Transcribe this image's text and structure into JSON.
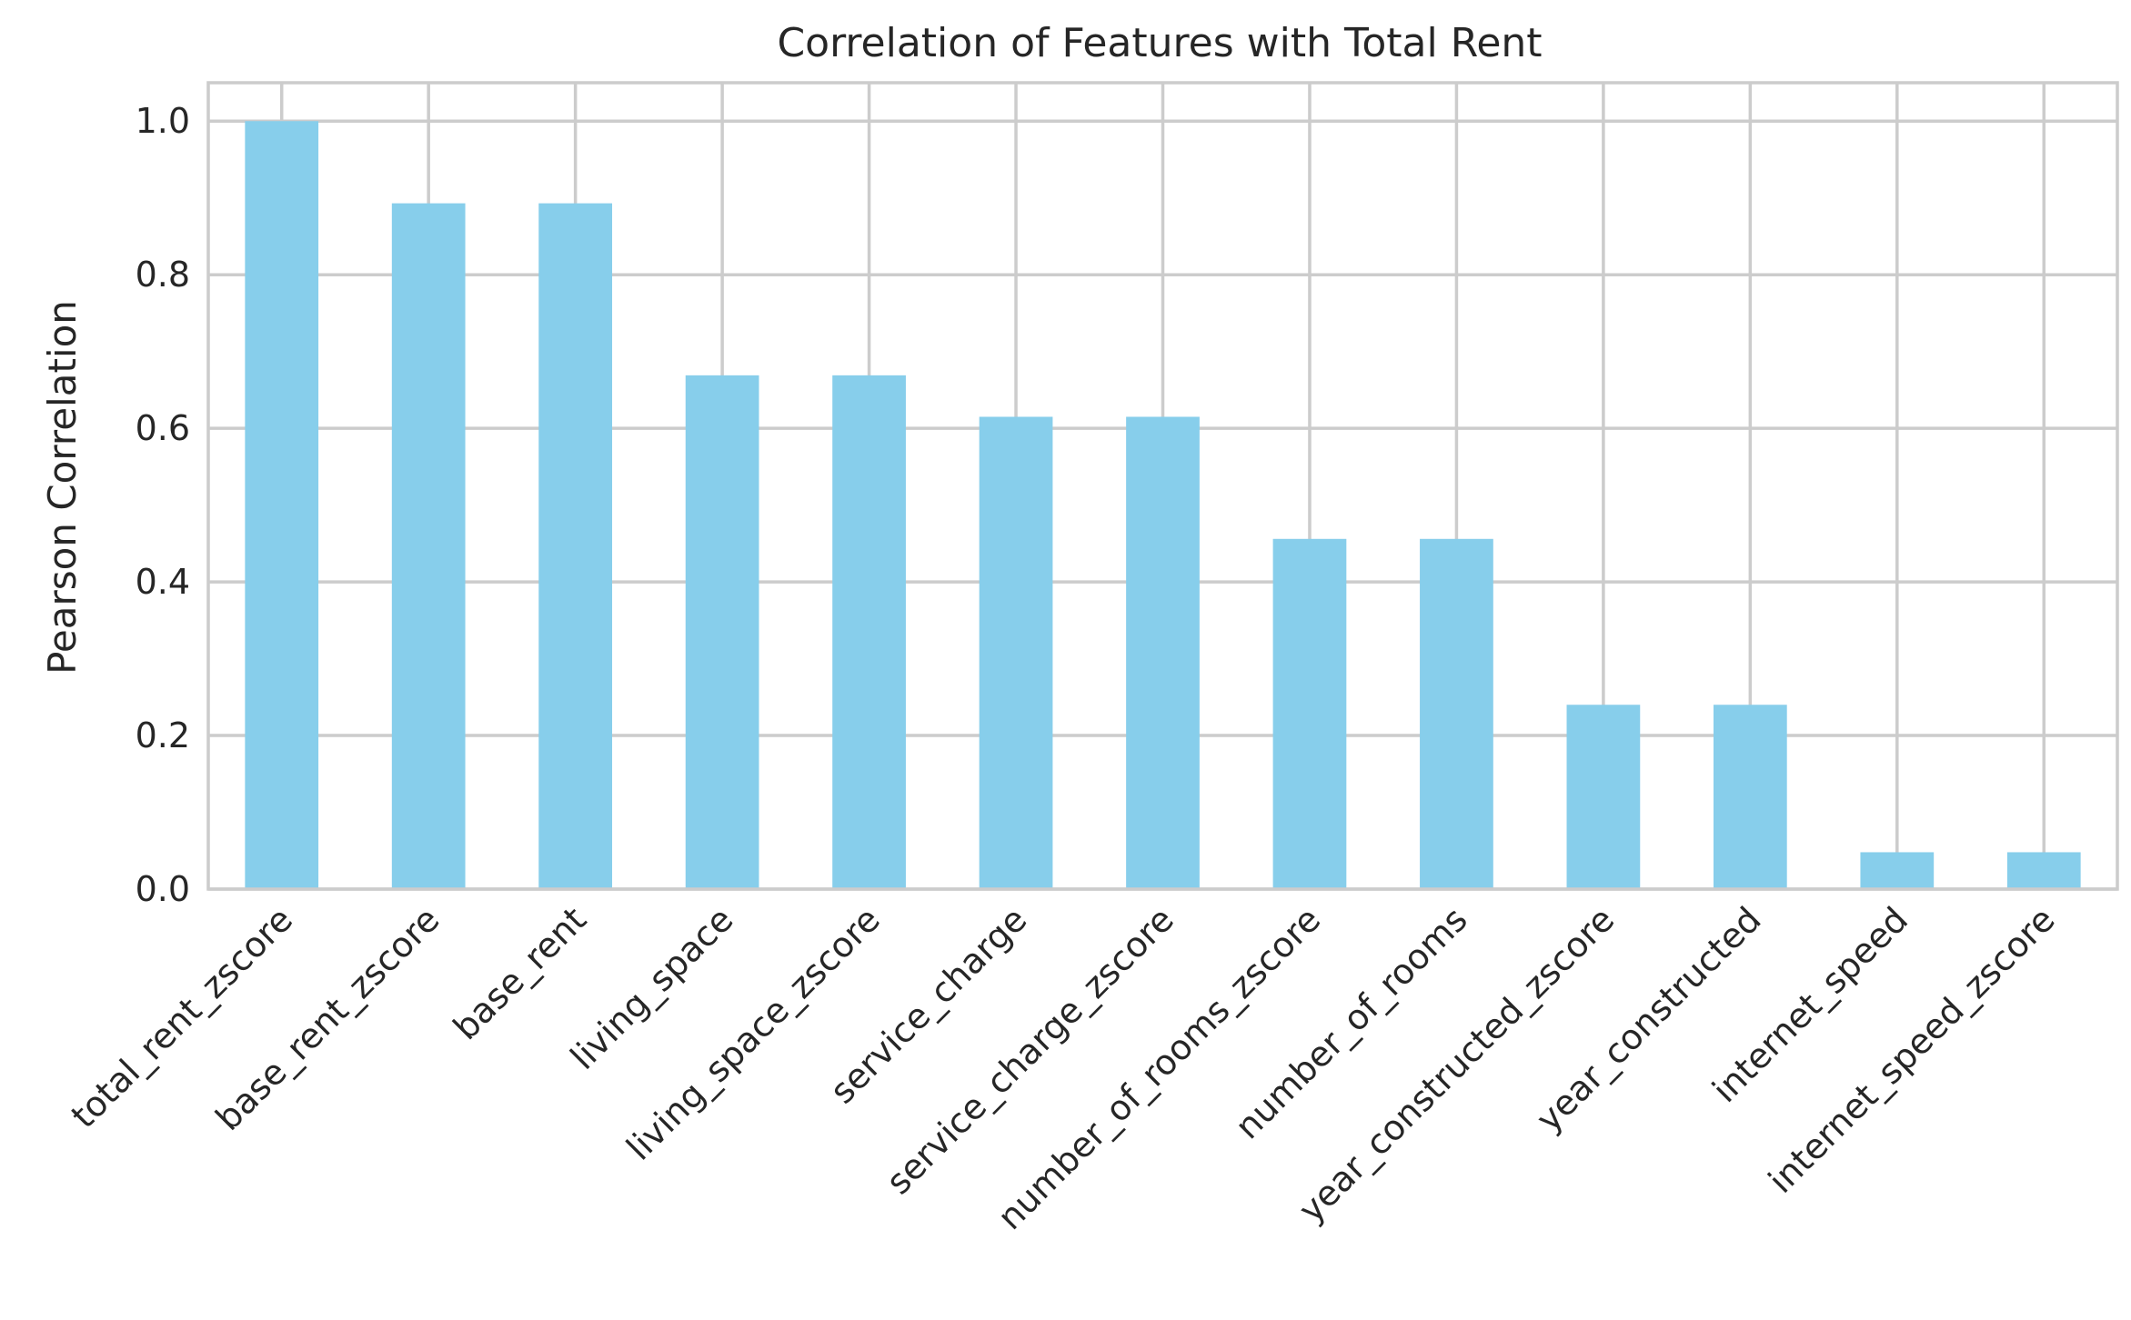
{
  "chart_data": {
    "type": "bar",
    "title": "Correlation of Features with Total Rent",
    "xlabel": "",
    "ylabel": "Pearson Correlation",
    "categories": [
      "total_rent_zscore",
      "base_rent_zscore",
      "base_rent",
      "living_space",
      "living_space_zscore",
      "service_charge",
      "service_charge_zscore",
      "number_of_rooms_zscore",
      "number_of_rooms",
      "year_constructed_zscore",
      "year_constructed",
      "internet_speed",
      "internet_speed_zscore"
    ],
    "values": [
      1.0,
      0.893,
      0.893,
      0.669,
      0.669,
      0.615,
      0.615,
      0.456,
      0.456,
      0.24,
      0.24,
      0.048,
      0.048
    ],
    "ylim": [
      0,
      1.05
    ],
    "yticks": [
      0.0,
      0.2,
      0.4,
      0.6,
      0.8,
      1.0
    ],
    "ytick_labels": [
      "0.0",
      "0.2",
      "0.4",
      "0.6",
      "0.8",
      "1.0"
    ],
    "grid": true,
    "legend": "none",
    "bar_color": "#87CEEB",
    "grid_color": "#cccccc",
    "axis_color": "#cccccc",
    "text_color": "#262626"
  }
}
